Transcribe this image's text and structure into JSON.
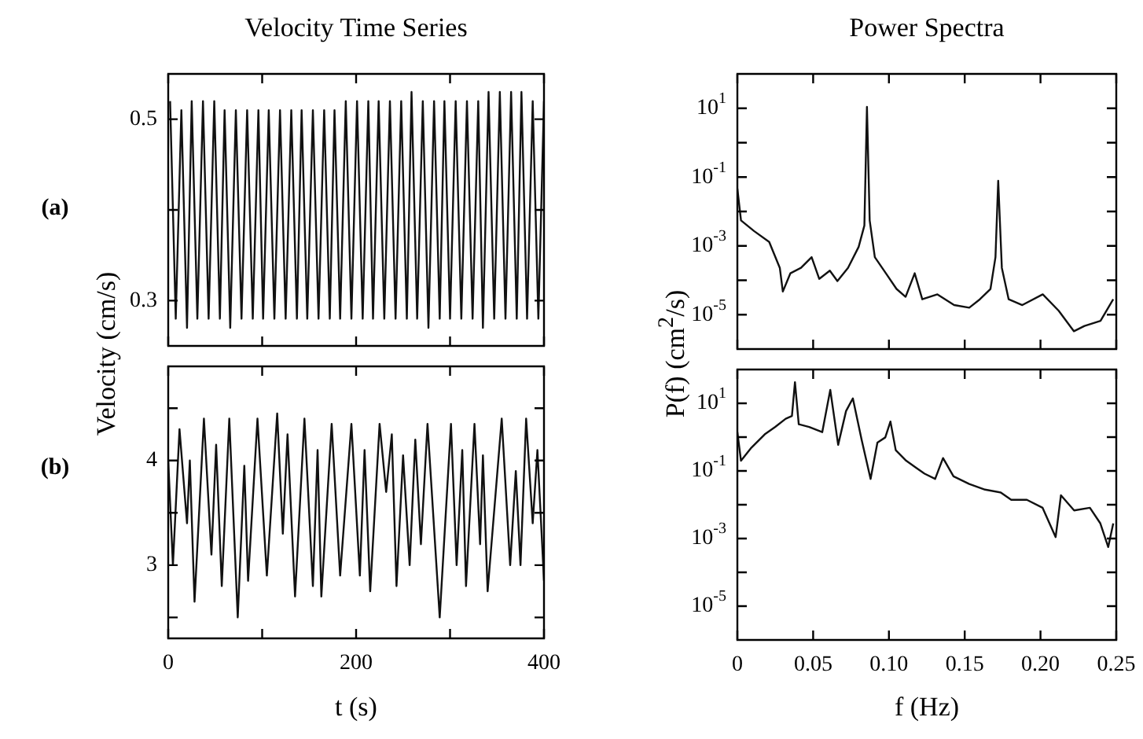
{
  "chart_data": [
    {
      "type": "line",
      "title": "Velocity Time Series",
      "ylabel": "Velocity (cm/s)",
      "annotations": [
        "(a)"
      ],
      "marker": "none",
      "tick_labels": "y",
      "xlim": [
        0,
        400
      ],
      "xticks": [
        {
          "value": 0,
          "label": null
        },
        {
          "value": 100,
          "label": null
        },
        {
          "value": 200,
          "label": null
        },
        {
          "value": 300,
          "label": null
        },
        {
          "value": 400,
          "label": null
        }
      ],
      "ylim": [
        0.25,
        0.55
      ],
      "yticks": [
        0.3,
        {
          "value": 0.4,
          "label": null
        },
        0.5
      ],
      "x": [
        2,
        8,
        14,
        20,
        25,
        31,
        37,
        43,
        49,
        55,
        60,
        66,
        72,
        78,
        84,
        90,
        96,
        101,
        107,
        113,
        119,
        125,
        131,
        137,
        142,
        148,
        154,
        160,
        166,
        172,
        177,
        183,
        189,
        195,
        201,
        207,
        213,
        218,
        224,
        230,
        236,
        242,
        248,
        254,
        259,
        265,
        271,
        277,
        283,
        289,
        294,
        300,
        306,
        312,
        318,
        324,
        330,
        335,
        341,
        347,
        353,
        359,
        365,
        371,
        376,
        382,
        388,
        394,
        400
      ],
      "series": [
        {
          "color": "#111111",
          "values": [
            0.52,
            0.28,
            0.51,
            0.27,
            0.52,
            0.28,
            0.52,
            0.28,
            0.52,
            0.28,
            0.51,
            0.27,
            0.51,
            0.28,
            0.51,
            0.28,
            0.51,
            0.28,
            0.51,
            0.28,
            0.51,
            0.28,
            0.51,
            0.28,
            0.51,
            0.28,
            0.51,
            0.28,
            0.51,
            0.28,
            0.51,
            0.28,
            0.52,
            0.28,
            0.52,
            0.28,
            0.52,
            0.28,
            0.52,
            0.28,
            0.52,
            0.28,
            0.52,
            0.28,
            0.53,
            0.28,
            0.52,
            0.27,
            0.52,
            0.28,
            0.52,
            0.28,
            0.52,
            0.28,
            0.52,
            0.28,
            0.52,
            0.27,
            0.53,
            0.28,
            0.53,
            0.28,
            0.53,
            0.28,
            0.53,
            0.28,
            0.52,
            0.28,
            0.52
          ]
        }
      ]
    },
    {
      "type": "line",
      "title": "Power Spectra",
      "ylabel": "P(f) (cm$^{2}$/s)",
      "marker": "none",
      "tick_labels": "y",
      "log": "y",
      "xlim": [
        0,
        0.25
      ],
      "xticks": [
        {
          "value": 0,
          "label": null
        },
        {
          "value": 0.05,
          "label": null
        },
        {
          "value": 0.1,
          "label": null
        },
        {
          "value": 0.15,
          "label": null
        },
        {
          "value": 0.2,
          "label": null
        },
        {
          "value": 0.25,
          "label": null
        }
      ],
      "ylim": [
        1e-06,
        100
      ],
      "yticks": [
        {
          "value": 1e-05,
          "label": "10$^{-5}$"
        },
        {
          "value": 0.0001,
          "label": null
        },
        {
          "value": 0.001,
          "label": "10$^{-3}$"
        },
        {
          "value": 0.01,
          "label": null
        },
        {
          "value": 0.1,
          "label": "10$^{-1}$"
        },
        {
          "value": 1,
          "label": null
        },
        {
          "value": 10,
          "label": "10$^{1}$"
        }
      ],
      "x": [
        0,
        0.0024,
        0.011,
        0.021,
        0.028,
        0.03,
        0.035,
        0.042,
        0.049,
        0.054,
        0.061,
        0.066,
        0.073,
        0.08,
        0.0838,
        0.0855,
        0.0873,
        0.0907,
        0.098,
        0.105,
        0.111,
        0.117,
        0.122,
        0.132,
        0.143,
        0.153,
        0.16,
        0.167,
        0.1703,
        0.1721,
        0.1745,
        0.179,
        0.188,
        0.2015,
        0.212,
        0.222,
        0.229,
        0.2396,
        0.248
      ],
      "series": [
        {
          "color": "#111111",
          "values": [
            0.046,
            0.0055,
            0.0027,
            0.0013,
            0.00023,
            4.7e-05,
            0.00016,
            0.00023,
            0.00047,
            0.00011,
            0.00019,
            9.5e-05,
            0.00023,
            0.00093,
            0.0039,
            11,
            0.0055,
            0.00047,
            0.00016,
            5.6e-05,
            3.3e-05,
            0.00016,
            2.8e-05,
            3.9e-05,
            1.9e-05,
            1.6e-05,
            2.8e-05,
            5.6e-05,
            0.00047,
            0.078,
            0.00023,
            2.8e-05,
            1.9e-05,
            3.9e-05,
            1.3e-05,
            3.3e-06,
            4.7e-06,
            6.6e-06,
            2.8e-05
          ]
        }
      ]
    },
    {
      "type": "line",
      "xlabel": "t (s)",
      "annotations": [
        "(b)"
      ],
      "marker": "none",
      "xlim": [
        0,
        400
      ],
      "xticks": [
        0,
        {
          "value": 100,
          "label": null
        },
        200,
        {
          "value": 300,
          "label": null
        },
        400
      ],
      "ylim": [
        2.3,
        4.9
      ],
      "yticks": [
        {
          "value": 2.5,
          "label": null
        },
        3,
        {
          "value": 3.5,
          "label": null
        },
        4,
        {
          "value": 4.5,
          "label": null
        }
      ],
      "x": [
        0,
        5,
        12,
        20,
        23,
        28,
        38,
        46,
        51,
        57,
        65,
        74,
        81,
        85,
        95,
        105,
        116,
        122,
        127,
        135,
        145,
        154,
        159,
        163,
        174,
        183,
        195,
        204,
        209,
        215,
        225,
        232,
        238,
        243,
        250,
        257,
        263,
        269,
        276,
        289,
        301,
        307,
        313,
        317,
        326,
        332,
        335,
        340,
        355,
        364,
        370,
        375,
        381,
        388,
        393,
        400
      ],
      "series": [
        {
          "color": "#111111",
          "values": [
            4.0,
            3.0,
            4.3,
            3.4,
            4.0,
            2.65,
            4.4,
            3.1,
            4.15,
            2.8,
            4.4,
            2.5,
            3.95,
            2.85,
            4.4,
            2.9,
            4.45,
            3.3,
            4.25,
            2.7,
            4.4,
            2.8,
            4.1,
            2.7,
            4.35,
            2.9,
            4.35,
            2.9,
            4.1,
            2.75,
            4.35,
            3.7,
            4.25,
            2.8,
            4.05,
            3.0,
            4.2,
            3.2,
            4.35,
            2.5,
            4.35,
            3.0,
            4.1,
            2.8,
            4.35,
            3.2,
            4.05,
            2.75,
            4.4,
            3.0,
            3.9,
            3.0,
            4.4,
            3.4,
            4.1,
            2.85
          ]
        }
      ]
    },
    {
      "type": "line",
      "xlabel": "f (Hz)",
      "marker": "none",
      "log": "y",
      "xlim": [
        0,
        0.25
      ],
      "xticks": [
        0,
        0.05,
        {
          "value": 0.1,
          "label": "0.10"
        },
        0.15,
        {
          "value": 0.2,
          "label": "0.20"
        },
        0.25
      ],
      "ylim": [
        1e-06,
        100
      ],
      "yticks": [
        {
          "value": 1e-05,
          "label": "10$^{-5}$"
        },
        {
          "value": 0.0001,
          "label": null
        },
        {
          "value": 0.001,
          "label": "10$^{-3}$"
        },
        {
          "value": 0.01,
          "label": null
        },
        {
          "value": 0.1,
          "label": "10$^{-1}$"
        },
        {
          "value": 1,
          "label": null
        },
        {
          "value": 10,
          "label": "10$^{1}$"
        }
      ],
      "x": [
        0,
        0.0024,
        0.0093,
        0.018,
        0.025,
        0.0319,
        0.036,
        0.038,
        0.0405,
        0.0474,
        0.056,
        0.0613,
        0.0665,
        0.0717,
        0.0762,
        0.082,
        0.0879,
        0.0924,
        0.0976,
        0.101,
        0.1045,
        0.1114,
        0.1183,
        0.1235,
        0.1305,
        0.1357,
        0.1426,
        0.153,
        0.1634,
        0.1738,
        0.1807,
        0.191,
        0.2014,
        0.21,
        0.2135,
        0.2222,
        0.2326,
        0.2395,
        0.2447,
        0.248
      ],
      "series": [
        {
          "color": "#111111",
          "values": [
            1.4,
            0.2,
            0.49,
            1.2,
            2,
            3.5,
            4.2,
            42,
            2.4,
            2,
            1.4,
            25,
            0.59,
            5.9,
            14,
            0.83,
            0.058,
            0.69,
            0.98,
            2.9,
            0.41,
            0.2,
            0.12,
            0.083,
            0.058,
            0.24,
            0.069,
            0.041,
            0.028,
            0.023,
            0.014,
            0.014,
            0.0081,
            0.0011,
            0.019,
            0.0068,
            0.0081,
            0.0028,
            0.00056,
            0.0028
          ]
        }
      ]
    }
  ]
}
